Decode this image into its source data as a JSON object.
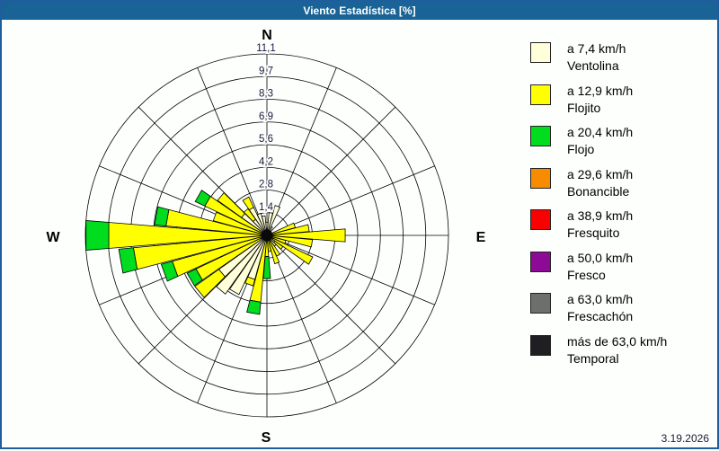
{
  "window": {
    "title": "Viento Estadística [%]",
    "date": "3.19.2026",
    "titlebar_color": "#1A6396",
    "border_color": "#1E5E9E"
  },
  "compass": {
    "north": "N",
    "east": "E",
    "south": "S",
    "west": "W"
  },
  "legend": {
    "items": [
      {
        "speed": "a 7,4 km/h",
        "name": "Ventolina",
        "color": "#FFFFD9"
      },
      {
        "speed": "a 12,9 km/h",
        "name": "Flojito",
        "color": "#FFFF00"
      },
      {
        "speed": "a 20,4 km/h",
        "name": "Flojo",
        "color": "#00DC1E"
      },
      {
        "speed": "a 29,6 km/h",
        "name": "Bonancible",
        "color": "#F88C00"
      },
      {
        "speed": "a 38,9 km/h",
        "name": "Fresquito",
        "color": "#FA0000"
      },
      {
        "speed": "a 50,0 km/h",
        "name": "Fresco",
        "color": "#8C0A96"
      },
      {
        "speed": "a 63,0 km/h",
        "name": "Frescachón",
        "color": "#6E6E6E"
      },
      {
        "speed": "más de 63,0 km/h",
        "name": "Temporal",
        "color": "#1F1F23"
      }
    ]
  },
  "chart_data": {
    "type": "bar",
    "subtype": "windrose-polar-stacked",
    "title": "Viento Estadística [%]",
    "units": "%",
    "rlim": [
      0,
      11.1
    ],
    "ring_values": [
      1.4,
      2.8,
      4.2,
      5.6,
      6.9,
      8.3,
      9.7,
      11.1
    ],
    "ring_labels": [
      "1,4",
      "2,8",
      "4,2",
      "5,6",
      "6,9",
      "8,3",
      "9,7",
      "11,1"
    ],
    "grid": {
      "rings": 8,
      "spokes": 16,
      "spoke_step_deg": 22.5,
      "on": true
    },
    "legend_position": "right",
    "sector_width_deg": 10,
    "directions_deg": [
      0,
      10,
      20,
      30,
      40,
      50,
      60,
      70,
      80,
      90,
      100,
      110,
      120,
      130,
      140,
      150,
      160,
      170,
      180,
      190,
      200,
      210,
      220,
      230,
      240,
      250,
      260,
      270,
      280,
      290,
      300,
      310,
      320,
      330,
      340,
      350
    ],
    "series": [
      {
        "name": "Ventolina (a 7,4 km/h)",
        "color": "#FFFFD9",
        "values": [
          0.8,
          1.4,
          1.9,
          0.6,
          0.25,
          0.2,
          0.3,
          0.3,
          0.3,
          0.3,
          0.3,
          0.3,
          0.4,
          0.6,
          0.8,
          0.4,
          0.3,
          0.3,
          0.2,
          0.3,
          2.8,
          4.0,
          4.4,
          3.6,
          0.4,
          0.3,
          0.3,
          0.2,
          0.3,
          0.3,
          0.3,
          1.9,
          1.2,
          1.9,
          1.4,
          1.2
        ]
      },
      {
        "name": "Flojito (a 12,9 km/h)",
        "color": "#FFFF00",
        "values": [
          0,
          0,
          0,
          0,
          0,
          0,
          0,
          1.5,
          2.3,
          4.5,
          2.5,
          0.9,
          2.7,
          0.6,
          0,
          1.0,
          1.5,
          0.7,
          1.1,
          3.8,
          0.4,
          0,
          0,
          1.8,
          4.4,
          5.7,
          7.9,
          9.5,
          5.9,
          3.1,
          3.9,
          1.8,
          0.8,
          0.7,
          0,
          0
        ]
      },
      {
        "name": "Flojo (a 20,4 km/h)",
        "color": "#00DC1E",
        "values": [
          0,
          0,
          0,
          0,
          0,
          0,
          0,
          0,
          0,
          0,
          0,
          0,
          0,
          0,
          0,
          0,
          0,
          0,
          1.35,
          0.75,
          0,
          0,
          0,
          0,
          0.6,
          0.7,
          0.9,
          1.4,
          0.7,
          0,
          0.65,
          0,
          0,
          0,
          0,
          0
        ]
      },
      {
        "name": "Bonancible (a 29,6 km/h)",
        "color": "#F88C00",
        "values": [
          0,
          0,
          0,
          0,
          0,
          0,
          0,
          0,
          0,
          0,
          0,
          0,
          0,
          0,
          0,
          0,
          0,
          0,
          0,
          0,
          0,
          0,
          0,
          0,
          0,
          0,
          0,
          0,
          0,
          0,
          0,
          0,
          0,
          0,
          0,
          0
        ]
      },
      {
        "name": "Fresquito (a 38,9 km/h)",
        "color": "#FA0000",
        "values": [
          0,
          0,
          0,
          0,
          0,
          0,
          0,
          0,
          0,
          0,
          0,
          0,
          0,
          0,
          0,
          0,
          0,
          0,
          0,
          0,
          0,
          0,
          0,
          0,
          0,
          0,
          0,
          0,
          0,
          0,
          0,
          0,
          0,
          0,
          0,
          0
        ]
      },
      {
        "name": "Fresco (a 50,0 km/h)",
        "color": "#8C0A96",
        "values": [
          0,
          0,
          0,
          0,
          0,
          0,
          0,
          0,
          0,
          0,
          0,
          0,
          0,
          0,
          0,
          0,
          0,
          0,
          0,
          0,
          0,
          0,
          0,
          0,
          0,
          0,
          0,
          0,
          0,
          0,
          0,
          0,
          0,
          0,
          0,
          0
        ]
      },
      {
        "name": "Frescachón (a 63,0 km/h)",
        "color": "#6E6E6E",
        "values": [
          0,
          0,
          0,
          0,
          0,
          0,
          0,
          0,
          0,
          0,
          0,
          0,
          0,
          0,
          0,
          0,
          0,
          0,
          0,
          0,
          0,
          0,
          0,
          0,
          0,
          0,
          0,
          0,
          0,
          0,
          0,
          0,
          0,
          0,
          0,
          0
        ]
      },
      {
        "name": "Temporal (más de 63,0 km/h)",
        "color": "#1F1F23",
        "values": [
          0,
          0,
          0,
          0,
          0,
          0,
          0,
          0,
          0,
          0,
          0,
          0,
          0,
          0,
          0,
          0,
          0,
          0,
          0,
          0,
          0,
          0,
          0,
          0,
          0,
          0,
          0,
          0,
          0,
          0,
          0,
          0,
          0,
          0,
          0,
          0
        ]
      }
    ]
  }
}
